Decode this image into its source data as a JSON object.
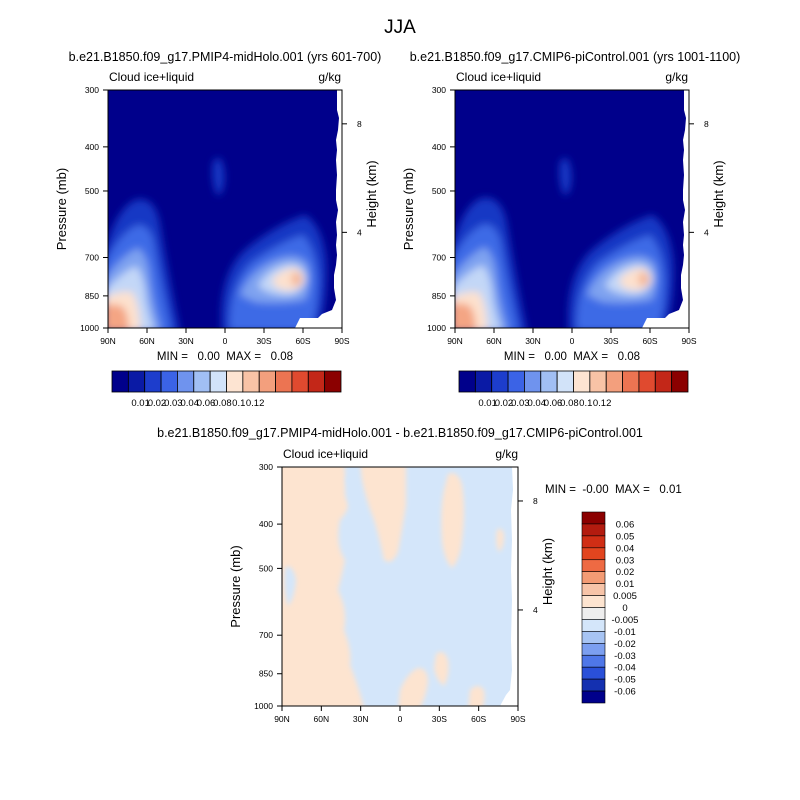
{
  "figure": {
    "title": "JJA"
  },
  "colors": {
    "base_background": "#00008b",
    "outside_domain": "#ffffff",
    "diff_negative_fill": "#d4e6fa",
    "diff_positive_fill": "#fde4d0",
    "axis_line": "#000000"
  },
  "chart_data": [
    {
      "type": "heatmap",
      "id": "midholo",
      "title": "b.e21.B1850.f09_g17.PMIP4-midHolo.001 (yrs 601-700)",
      "left_label": "Cloud ice+liquid",
      "right_label": "g/kg",
      "ylabel": "Pressure (mb)",
      "ylabel_right": "Height (km)",
      "xtick_labels": [
        "90N",
        "60N",
        "30N",
        "0",
        "30S",
        "60S",
        "90S"
      ],
      "xtick_values": [
        90,
        60,
        30,
        0,
        -30,
        -60,
        -90
      ],
      "ytick_labels": [
        "300",
        "400",
        "500",
        "700",
        "850",
        "1000"
      ],
      "ytick_values": [
        300,
        400,
        500,
        700,
        850,
        1000
      ],
      "height_tick_labels": [
        "8",
        "4"
      ],
      "height_tick_values": [
        8,
        4
      ],
      "ylim": [
        1000,
        300
      ],
      "xlim": [
        90,
        -90
      ],
      "y_scale": "log",
      "stats_text": "MIN =   0.00  MAX =   0.08",
      "min": 0.0,
      "max": 0.08,
      "colorbar": {
        "orientation": "horizontal",
        "tick_labels": [
          "0.01",
          "0.02",
          "0.03",
          "0.04",
          "0.06",
          "0.08",
          "0.1",
          "0.12"
        ],
        "colors": [
          "#00008b",
          "#0a1aa5",
          "#1d3dcc",
          "#3b63e6",
          "#6f93ee",
          "#a1bff4",
          "#d2e3f9",
          "#fde4d2",
          "#f8c3a6",
          "#f39f7d",
          "#ec7452",
          "#e04a2f",
          "#c32718",
          "#8b0000"
        ]
      },
      "features": [
        {
          "label": "Southern Hemisphere low-level maximum",
          "lat": -52,
          "p": 850,
          "value": 0.08
        },
        {
          "label": "Northern Hemisphere low-level maximum",
          "lat": 82,
          "p": 975,
          "value": 0.07
        },
        {
          "label": "Northern Hemisphere midlatitude storm track",
          "lat": 62,
          "p": 850,
          "value": 0.05
        }
      ]
    },
    {
      "type": "heatmap",
      "id": "picontrol",
      "title": "b.e21.B1850.f09_g17.CMIP6-piControl.001 (yrs 1001-1100)",
      "left_label": "Cloud ice+liquid",
      "right_label": "g/kg",
      "ylabel": "Pressure (mb)",
      "ylabel_right": "Height (km)",
      "xtick_labels": [
        "90N",
        "60N",
        "30N",
        "0",
        "30S",
        "60S",
        "90S"
      ],
      "xtick_values": [
        90,
        60,
        30,
        0,
        -30,
        -60,
        -90
      ],
      "ytick_labels": [
        "300",
        "400",
        "500",
        "700",
        "850",
        "1000"
      ],
      "ytick_values": [
        300,
        400,
        500,
        700,
        850,
        1000
      ],
      "height_tick_labels": [
        "8",
        "4"
      ],
      "height_tick_values": [
        8,
        4
      ],
      "ylim": [
        1000,
        300
      ],
      "xlim": [
        90,
        -90
      ],
      "y_scale": "log",
      "stats_text": "MIN =   0.00  MAX =   0.08",
      "min": 0.0,
      "max": 0.08,
      "colorbar": {
        "orientation": "horizontal",
        "tick_labels": [
          "0.01",
          "0.02",
          "0.03",
          "0.04",
          "0.06",
          "0.08",
          "0.1",
          "0.12"
        ],
        "colors": [
          "#00008b",
          "#0a1aa5",
          "#1d3dcc",
          "#3b63e6",
          "#6f93ee",
          "#a1bff4",
          "#d2e3f9",
          "#fde4d2",
          "#f8c3a6",
          "#f39f7d",
          "#ec7452",
          "#e04a2f",
          "#c32718",
          "#8b0000"
        ]
      },
      "features": [
        {
          "label": "Southern Hemisphere low-level maximum",
          "lat": -52,
          "p": 850,
          "value": 0.08
        },
        {
          "label": "Northern Hemisphere low-level maximum",
          "lat": 82,
          "p": 975,
          "value": 0.07
        },
        {
          "label": "Northern Hemisphere midlatitude storm track",
          "lat": 62,
          "p": 850,
          "value": 0.05
        }
      ]
    },
    {
      "type": "heatmap",
      "id": "difference",
      "title": "b.e21.B1850.f09_g17.PMIP4-midHolo.001 - b.e21.B1850.f09_g17.CMIP6-piControl.001",
      "left_label": "Cloud ice+liquid",
      "right_label": "g/kg",
      "ylabel": "Pressure (mb)",
      "ylabel_right": "Height (km)",
      "xtick_labels": [
        "90N",
        "60N",
        "30N",
        "0",
        "30S",
        "60S",
        "90S"
      ],
      "xtick_values": [
        90,
        60,
        30,
        0,
        -30,
        -60,
        -90
      ],
      "ytick_labels": [
        "300",
        "400",
        "500",
        "700",
        "850",
        "1000"
      ],
      "ytick_values": [
        300,
        400,
        500,
        700,
        850,
        1000
      ],
      "height_tick_labels": [
        "8",
        "4"
      ],
      "height_tick_values": [
        8,
        4
      ],
      "ylim": [
        1000,
        300
      ],
      "xlim": [
        90,
        -90
      ],
      "y_scale": "log",
      "stats_text": "MIN =  -0.00  MAX =   0.01",
      "min": -0.0,
      "max": 0.01,
      "colorbar": {
        "orientation": "vertical",
        "tick_labels": [
          "0.06",
          "0.05",
          "0.04",
          "0.03",
          "0.02",
          "0.01",
          "0.005",
          "0",
          "-0.005",
          "-0.01",
          "-0.02",
          "-0.03",
          "-0.04",
          "-0.05",
          "-0.06"
        ],
        "colors": [
          "#8b0000",
          "#b31b0f",
          "#d02e15",
          "#e2451f",
          "#ee6a43",
          "#f39b74",
          "#f7c4a8",
          "#fde4d0",
          "#eeeeee",
          "#d4e6fa",
          "#a7c4f3",
          "#7c9ff0",
          "#4f77e8",
          "#2a50d8",
          "#1430b0",
          "#00008b"
        ]
      }
    }
  ]
}
